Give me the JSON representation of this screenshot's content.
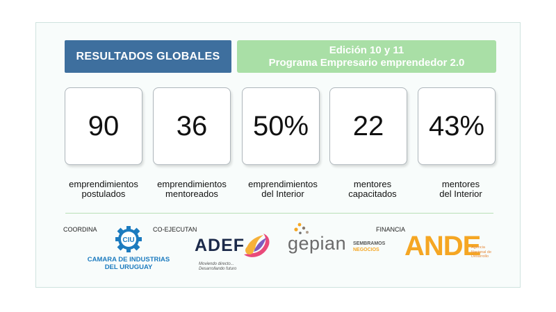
{
  "header": {
    "left_title": "RESULTADOS GLOBALES",
    "right_line1": "Edición 10 y 11",
    "right_line2": "Programa Empresario emprendedor 2.0"
  },
  "stats": [
    {
      "value": "90",
      "line1": "emprendimientos",
      "line2": "postulados"
    },
    {
      "value": "36",
      "line1": "emprendimientos",
      "line2": "mentoreados"
    },
    {
      "value": "50%",
      "line1": "emprendimientos",
      "line2": "del Interior"
    },
    {
      "value": "22",
      "line1": "mentores",
      "line2": "capacitados"
    },
    {
      "value": "43%",
      "line1": "mentores",
      "line2": "del Interior"
    }
  ],
  "sponsors": {
    "coordina_label": "COORDINA",
    "coejecutan_label": "CO-EJECUTAN",
    "financia_label": "FINANCIA",
    "ciu": {
      "mark": "CIU",
      "line1": "CAMARA DE INDUSTRIAS",
      "line2": "DEL URUGUAY"
    },
    "adef": {
      "name": "ADEF",
      "tagline1": "Moviendo directo...",
      "tagline2": "Desarrollando futuro"
    },
    "gepian": {
      "name": "gepian",
      "tag1": "SEMBRAMOS",
      "tag2": "NEGOCIOS"
    },
    "ande": {
      "name": "ANDE",
      "sub1": "Agencia",
      "sub2": "Nacional de",
      "sub3": "Desarrollo"
    }
  },
  "colors": {
    "blue_header": "#3e6f9e",
    "green_header": "#a9dfa6",
    "ciu_blue": "#1c7bbf",
    "adef_navy": "#1c2a4a",
    "gepian_gray": "#6b6b6b",
    "ande_orange": "#f5a623"
  }
}
